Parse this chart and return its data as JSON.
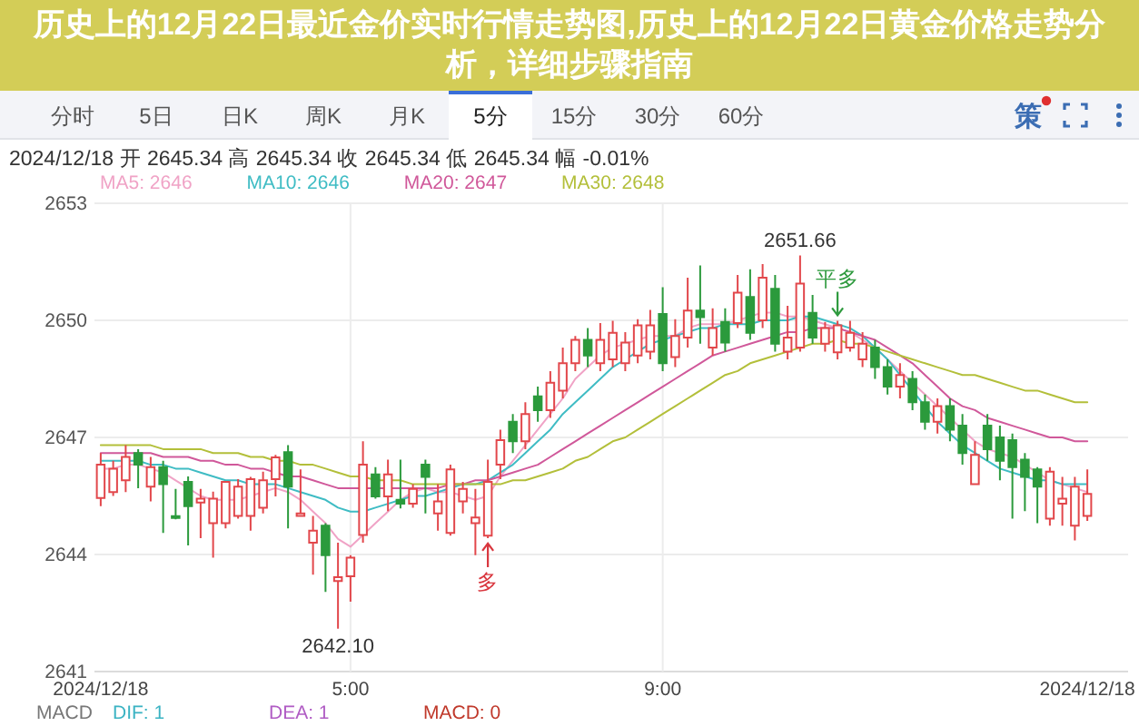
{
  "chart_data": {
    "type": "candlestick",
    "title": "历史上的12月22日最近金价实时行情走势图,历史上的12月22日黄金价格走势分析，详细步骤指南",
    "categories": [
      "2024/12/18",
      null,
      null,
      null,
      null,
      null,
      null,
      null,
      null,
      null,
      null,
      null,
      null,
      null,
      null,
      null,
      null,
      null,
      null,
      null,
      "5:00",
      null,
      null,
      null,
      null,
      null,
      null,
      null,
      null,
      null,
      null,
      null,
      null,
      null,
      null,
      null,
      null,
      null,
      null,
      null,
      null,
      null,
      null,
      null,
      null,
      "9:00",
      null,
      null,
      null,
      null,
      null,
      null,
      null,
      null,
      null,
      null,
      null,
      null,
      null,
      null,
      null,
      null,
      null,
      null,
      null,
      null,
      null,
      null,
      null,
      null,
      null,
      null,
      null,
      null,
      null,
      null,
      null,
      null,
      null,
      "2024/12/18"
    ],
    "ohlc": [
      [
        2645.45,
        2646.6,
        2645.24,
        2646.3
      ],
      [
        2645.6,
        2646.4,
        2645.5,
        2646.2
      ],
      [
        2645.9,
        2646.8,
        2645.6,
        2646.5
      ],
      [
        2646.6,
        2646.7,
        2645.7,
        2646.3
      ],
      [
        2645.74,
        2646.5,
        2645.36,
        2646.24
      ],
      [
        2646.24,
        2646.4,
        2644.55,
        2645.8
      ],
      [
        2644.97,
        2645.68,
        2644.9,
        2644.95
      ],
      [
        2645.86,
        2646.0,
        2644.23,
        2645.24
      ],
      [
        2645.33,
        2645.68,
        2644.42,
        2645.43
      ],
      [
        2644.8,
        2645.61,
        2643.92,
        2645.43
      ],
      [
        2644.8,
        2645.86,
        2644.67,
        2645.86
      ],
      [
        2644.99,
        2645.93,
        2644.92,
        2645.74
      ],
      [
        2644.99,
        2645.99,
        2644.61,
        2645.93
      ],
      [
        2645.2,
        2646.12,
        2645.05,
        2645.9
      ],
      [
        2645.93,
        2646.55,
        2645.49,
        2646.49
      ],
      [
        2646.62,
        2646.8,
        2644.67,
        2645.74
      ],
      [
        2644.99,
        2646.18,
        2644.99,
        2645.05
      ],
      [
        2644.3,
        2644.99,
        2643.48,
        2644.61
      ],
      [
        2644.74,
        2644.8,
        2643.04,
        2643.98
      ],
      [
        2643.32,
        2644.3,
        2642.1,
        2643.42
      ],
      [
        2643.44,
        2643.98,
        2642.79,
        2643.92
      ],
      [
        2644.5,
        2646.9,
        2644.3,
        2646.3
      ],
      [
        2646.05,
        2646.24,
        2645.43,
        2645.49
      ],
      [
        2645.49,
        2646.43,
        2645.11,
        2646.05
      ],
      [
        2645.4,
        2646.43,
        2645.18,
        2645.3
      ],
      [
        2645.3,
        2645.8,
        2645.2,
        2645.68
      ],
      [
        2646.3,
        2646.43,
        2645.05,
        2645.99
      ],
      [
        2645.05,
        2645.8,
        2644.61,
        2645.36
      ],
      [
        2644.55,
        2646.3,
        2644.48,
        2646.18
      ],
      [
        2645.36,
        2645.86,
        2645.05,
        2645.68
      ],
      [
        2644.8,
        2645.68,
        2643.98,
        2644.95
      ],
      [
        2644.48,
        2646.43,
        2644.42,
        2645.86
      ],
      [
        2646.3,
        2647.2,
        2645.93,
        2646.93
      ],
      [
        2647.4,
        2647.6,
        2646.6,
        2646.9
      ],
      [
        2646.9,
        2647.9,
        2646.7,
        2647.6
      ],
      [
        2648.05,
        2648.3,
        2647.4,
        2647.7
      ],
      [
        2647.7,
        2648.7,
        2647.5,
        2648.4
      ],
      [
        2648.2,
        2649.3,
        2648.0,
        2648.9
      ],
      [
        2648.9,
        2649.6,
        2648.7,
        2649.5
      ],
      [
        2649.5,
        2649.8,
        2648.8,
        2649.1
      ],
      [
        2648.9,
        2649.93,
        2648.7,
        2649.5
      ],
      [
        2649.0,
        2649.99,
        2648.8,
        2649.68
      ],
      [
        2648.9,
        2649.7,
        2648.7,
        2649.43
      ],
      [
        2649.1,
        2650.03,
        2648.9,
        2649.87
      ],
      [
        2649.2,
        2650.27,
        2649.0,
        2649.87
      ],
      [
        2650.16,
        2650.85,
        2648.7,
        2648.9
      ],
      [
        2649.06,
        2650.03,
        2648.8,
        2649.6
      ],
      [
        2649.56,
        2651.09,
        2649.3,
        2650.25
      ],
      [
        2650.25,
        2651.41,
        2649.4,
        2650.08
      ],
      [
        2649.3,
        2650.31,
        2649.1,
        2649.8
      ],
      [
        2649.96,
        2650.31,
        2649.2,
        2649.43
      ],
      [
        2649.93,
        2651.16,
        2649.8,
        2650.71
      ],
      [
        2650.6,
        2651.31,
        2649.5,
        2649.68
      ],
      [
        2650.0,
        2651.44,
        2649.8,
        2651.09
      ],
      [
        2650.81,
        2651.16,
        2649.2,
        2649.4
      ],
      [
        2649.2,
        2650.37,
        2649.0,
        2649.56
      ],
      [
        2649.3,
        2651.66,
        2649.2,
        2650.94
      ],
      [
        2650.19,
        2650.65,
        2649.4,
        2649.56
      ],
      [
        2649.4,
        2649.96,
        2649.2,
        2649.8
      ],
      [
        2649.18,
        2649.99,
        2649.0,
        2649.87
      ],
      [
        2649.3,
        2649.99,
        2649.2,
        2649.68
      ],
      [
        2649.0,
        2649.7,
        2648.8,
        2649.4
      ],
      [
        2649.3,
        2649.5,
        2648.5,
        2648.8
      ],
      [
        2648.8,
        2649.0,
        2648.1,
        2648.3
      ],
      [
        2648.3,
        2648.9,
        2648.0,
        2648.6
      ],
      [
        2648.5,
        2648.7,
        2647.7,
        2647.9
      ],
      [
        2647.9,
        2648.1,
        2647.2,
        2647.4
      ],
      [
        2647.4,
        2648.0,
        2647.1,
        2647.8
      ],
      [
        2647.8,
        2648.0,
        2646.9,
        2647.2
      ],
      [
        2647.3,
        2647.6,
        2646.3,
        2646.6
      ],
      [
        2645.8,
        2646.9,
        2645.8,
        2646.55
      ],
      [
        2647.3,
        2647.6,
        2646.4,
        2646.7
      ],
      [
        2647.0,
        2647.3,
        2645.9,
        2646.4
      ],
      [
        2646.93,
        2647.1,
        2644.92,
        2646.24
      ],
      [
        2646.43,
        2646.6,
        2645.11,
        2645.99
      ],
      [
        2646.18,
        2646.24,
        2644.8,
        2645.74
      ],
      [
        2644.92,
        2646.24,
        2644.74,
        2646.12
      ],
      [
        2645.3,
        2645.99,
        2644.74,
        2645.43
      ],
      [
        2644.74,
        2645.99,
        2644.36,
        2645.74
      ],
      [
        2644.99,
        2646.18,
        2644.86,
        2645.55
      ]
    ],
    "colors": [
      "#e2474b",
      "#e2474b",
      "#e2474b",
      "#2b9a3c",
      "#e2474b",
      "#2b9a3c",
      "#2b9a3c",
      "#2b9a3c",
      "#e2474b",
      "#e2474b",
      "#e2474b",
      "#e2474b",
      "#e2474b",
      "#e2474b",
      "#e2474b",
      "#2b9a3c",
      "#e2474b",
      "#e2474b",
      "#2b9a3c",
      "#e2474b",
      "#e2474b",
      "#e2474b",
      "#2b9a3c",
      "#e2474b",
      "#2b9a3c",
      "#e2474b",
      "#2b9a3c",
      "#e2474b",
      "#e2474b",
      "#e2474b",
      "#e2474b",
      "#e2474b",
      "#e2474b",
      "#2b9a3c",
      "#e2474b",
      "#2b9a3c",
      "#e2474b",
      "#e2474b",
      "#e2474b",
      "#2b9a3c",
      "#e2474b",
      "#e2474b",
      "#e2474b",
      "#e2474b",
      "#e2474b",
      "#2b9a3c",
      "#e2474b",
      "#e2474b",
      "#2b9a3c",
      "#e2474b",
      "#2b9a3c",
      "#e2474b",
      "#2b9a3c",
      "#e2474b",
      "#2b9a3c",
      "#e2474b",
      "#e2474b",
      "#2b9a3c",
      "#e2474b",
      "#e2474b",
      "#e2474b",
      "#e2474b",
      "#2b9a3c",
      "#2b9a3c",
      "#e2474b",
      "#2b9a3c",
      "#2b9a3c",
      "#e2474b",
      "#2b9a3c",
      "#2b9a3c",
      "#e2474b",
      "#2b9a3c",
      "#2b9a3c",
      "#2b9a3c",
      "#2b9a3c",
      "#2b9a3c",
      "#e2474b",
      "#e2474b",
      "#e2474b",
      "#e2474b"
    ],
    "value_labels": [
      null,
      null,
      null,
      null,
      null,
      null,
      null,
      null,
      null,
      null,
      null,
      null,
      null,
      null,
      null,
      null,
      null,
      null,
      null,
      "2642.10",
      null,
      null,
      null,
      null,
      null,
      null,
      null,
      null,
      null,
      null,
      null,
      "多",
      null,
      null,
      null,
      null,
      null,
      null,
      null,
      null,
      null,
      null,
      null,
      null,
      null,
      null,
      null,
      null,
      null,
      null,
      null,
      null,
      null,
      null,
      null,
      null,
      "2651.66",
      null,
      null,
      "平多",
      null,
      null,
      null,
      null,
      null,
      null,
      null,
      null,
      null,
      null,
      null,
      null,
      null,
      null,
      null,
      null,
      null,
      null,
      null,
      null
    ],
    "series": [
      {
        "type": "line",
        "name": "MA5: 2646",
        "color": "#f0a3c6",
        "values": [
          2646.2,
          2646.2,
          2646.3,
          2646.3,
          2646.2,
          2646.1,
          2645.9,
          2645.7,
          2645.5,
          2645.4,
          2645.4,
          2645.4,
          2645.5,
          2645.6,
          2645.7,
          2645.6,
          2645.4,
          2645.1,
          2644.8,
          2644.4,
          2644.2,
          2644.5,
          2644.8,
          2645.1,
          2645.4,
          2645.6,
          2645.7,
          2645.6,
          2645.6,
          2645.5,
          2645.4,
          2645.5,
          2646.0,
          2646.4,
          2646.8,
          2647.2,
          2647.6,
          2648.0,
          2648.5,
          2648.8,
          2649.1,
          2649.3,
          2649.4,
          2649.5,
          2649.6,
          2649.6,
          2649.6,
          2649.8,
          2649.9,
          2649.9,
          2649.9,
          2650.0,
          2650.1,
          2650.2,
          2650.2,
          2650.1,
          2650.1,
          2650.0,
          2649.9,
          2649.8,
          2649.7,
          2649.5,
          2649.3,
          2649.0,
          2648.7,
          2648.4,
          2648.1,
          2647.8,
          2647.5,
          2647.2,
          2646.9,
          2646.7,
          2646.6,
          2646.5,
          2646.3,
          2646.1,
          2645.9,
          2645.8,
          2645.7,
          2645.6
        ]
      },
      {
        "type": "line",
        "name": "MA10: 2646",
        "color": "#3fbcc4",
        "values": [
          2646.4,
          2646.4,
          2646.4,
          2646.4,
          2646.3,
          2646.3,
          2646.2,
          2646.2,
          2646.1,
          2646.0,
          2645.9,
          2645.9,
          2645.8,
          2645.8,
          2645.8,
          2645.7,
          2645.6,
          2645.5,
          2645.4,
          2645.2,
          2645.1,
          2645.1,
          2645.2,
          2645.3,
          2645.4,
          2645.5,
          2645.5,
          2645.6,
          2645.7,
          2645.8,
          2645.8,
          2645.9,
          2646.1,
          2646.3,
          2646.6,
          2646.9,
          2647.2,
          2647.6,
          2647.9,
          2648.2,
          2648.5,
          2648.8,
          2649.0,
          2649.2,
          2649.4,
          2649.5,
          2649.6,
          2649.7,
          2649.8,
          2649.8,
          2649.9,
          2649.9,
          2649.9,
          2650.0,
          2650.0,
          2650.0,
          2650.1,
          2650.1,
          2650.0,
          2649.9,
          2649.8,
          2649.6,
          2649.3,
          2649.0,
          2648.6,
          2648.2,
          2647.8,
          2647.4,
          2647.1,
          2646.8,
          2646.6,
          2646.4,
          2646.2,
          2646.1,
          2646.0,
          2645.9,
          2645.9,
          2645.8,
          2645.8,
          2645.8
        ]
      },
      {
        "type": "line",
        "name": "MA20: 2647",
        "color": "#d0589a",
        "values": [
          2646.6,
          2646.6,
          2646.6,
          2646.6,
          2646.6,
          2646.5,
          2646.5,
          2646.5,
          2646.4,
          2646.4,
          2646.3,
          2646.3,
          2646.2,
          2646.2,
          2646.1,
          2646.0,
          2646.0,
          2645.9,
          2645.8,
          2645.7,
          2645.7,
          2645.7,
          2645.7,
          2645.7,
          2645.7,
          2645.7,
          2645.7,
          2645.7,
          2645.8,
          2645.8,
          2645.9,
          2645.9,
          2646.0,
          2646.1,
          2646.2,
          2646.3,
          2646.5,
          2646.7,
          2646.9,
          2647.1,
          2647.3,
          2647.5,
          2647.7,
          2647.9,
          2648.1,
          2648.3,
          2648.5,
          2648.7,
          2648.9,
          2649.1,
          2649.2,
          2649.3,
          2649.4,
          2649.5,
          2649.6,
          2649.7,
          2649.7,
          2649.8,
          2649.8,
          2649.8,
          2649.7,
          2649.6,
          2649.5,
          2649.3,
          2649.1,
          2648.9,
          2648.6,
          2648.3,
          2648.0,
          2647.8,
          2647.7,
          2647.5,
          2647.4,
          2647.3,
          2647.2,
          2647.1,
          2647.0,
          2647.0,
          2646.9,
          2646.9
        ]
      },
      {
        "type": "line",
        "name": "MA30: 2648",
        "color": "#b3bf3a",
        "values": [
          2646.8,
          2646.8,
          2646.8,
          2646.8,
          2646.8,
          2646.7,
          2646.7,
          2646.7,
          2646.7,
          2646.6,
          2646.6,
          2646.6,
          2646.5,
          2646.5,
          2646.4,
          2646.4,
          2646.3,
          2646.3,
          2646.2,
          2646.1,
          2646.0,
          2646.0,
          2645.9,
          2645.9,
          2645.9,
          2645.8,
          2645.8,
          2645.8,
          2645.8,
          2645.8,
          2645.8,
          2645.8,
          2645.8,
          2645.9,
          2645.9,
          2646.0,
          2646.1,
          2646.2,
          2646.4,
          2646.5,
          2646.7,
          2646.9,
          2647.0,
          2647.2,
          2647.4,
          2647.6,
          2647.8,
          2648.0,
          2648.2,
          2648.4,
          2648.6,
          2648.7,
          2648.9,
          2649.0,
          2649.1,
          2649.2,
          2649.3,
          2649.4,
          2649.4,
          2649.5,
          2649.4,
          2649.4,
          2649.3,
          2649.2,
          2649.1,
          2649.0,
          2648.9,
          2648.8,
          2648.7,
          2648.6,
          2648.6,
          2648.5,
          2648.4,
          2648.3,
          2648.2,
          2648.2,
          2648.1,
          2648.0,
          2647.9,
          2647.9
        ]
      }
    ],
    "ylim": [
      2641,
      2653
    ],
    "yticks": [
      2641,
      2644,
      2647,
      2650,
      2653
    ],
    "grid": true,
    "legend": "top left",
    "annotations": [
      "分时",
      "5日",
      "日K",
      "周K",
      "月K",
      "5分",
      "15分",
      "30分",
      "60分",
      "策",
      "2024/12/18  开 2645.34  高 2645.34  收 2645.34  低 2645.34  幅 -0.01%",
      "MACD",
      "DIF: 1",
      "DEA: 1",
      "MACD: 0"
    ]
  }
}
